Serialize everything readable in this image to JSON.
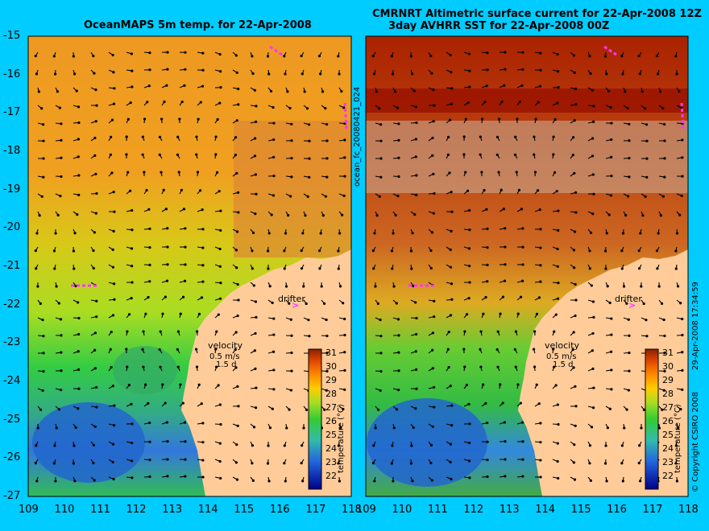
{
  "titles": {
    "left": "OceanMAPS 5m temp. for 22-Apr-2008",
    "right_line1": "CMRNRT Altimetric surface current for 22-Apr-2008 12Z",
    "right_line2": "3day AVHRR SST for 22-Apr-2008 00Z"
  },
  "side_labels": {
    "model_run": "ocean_fc_20080421_024",
    "copyright": "© Copyright CSIRO 2008",
    "timestamp": "29-Apr-2008 17:34:59"
  },
  "axes": {
    "lat_ticks": [
      "-15",
      "-16",
      "-17",
      "-18",
      "-19",
      "-20",
      "-21",
      "-22",
      "-23",
      "-24",
      "-25",
      "-26",
      "-27"
    ],
    "lon_ticks": [
      "109",
      "110",
      "111",
      "112",
      "113",
      "114",
      "115",
      "116",
      "117",
      "118"
    ]
  },
  "annotations": {
    "drifter": "drifter",
    "velocity_title": "velocity",
    "velocity_speed": "0.5 m/s",
    "velocity_time": "1.5 d"
  },
  "colorbar": {
    "label": "temperature (°C)",
    "ticks": [
      "31",
      "30",
      "29",
      "28",
      "27",
      "26",
      "25",
      "24",
      "23",
      "22"
    ]
  },
  "colors": {
    "background": "#00ccff",
    "land": "#ffcc99",
    "contour": "#33cccc",
    "drifter": "#ff33ff",
    "cloud": "#c8a890"
  }
}
